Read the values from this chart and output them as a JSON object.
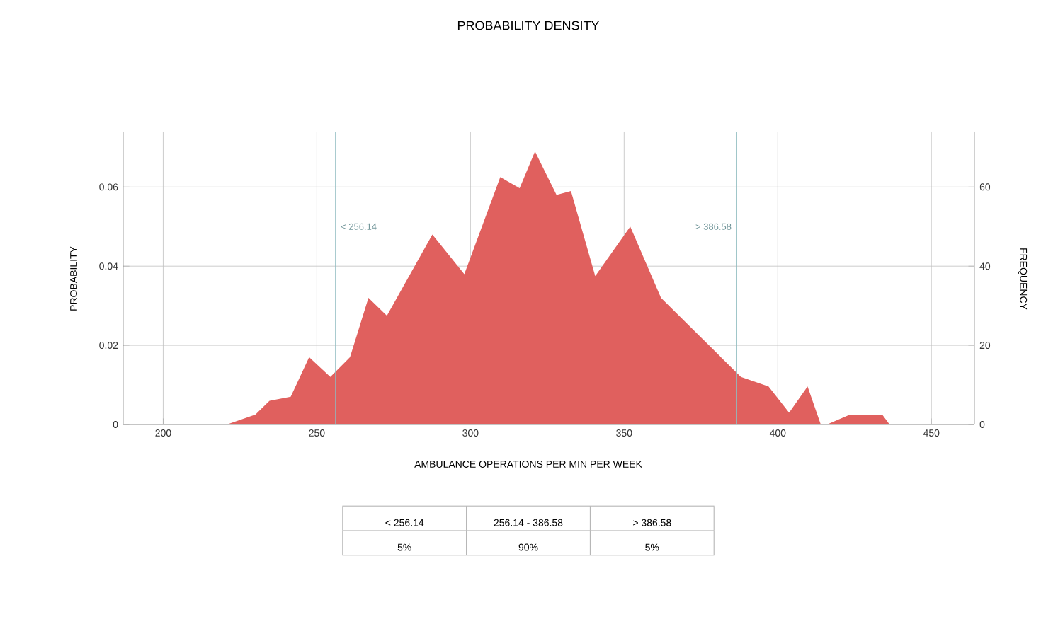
{
  "chart_data": {
    "type": "area",
    "title": "PROBABILITY DENSITY",
    "xlabel": "AMBULANCE OPERATIONS PER MIN PER WEEK",
    "ylabel": "PROBABILITY",
    "y2label": "FREQUENCY",
    "series": [
      {
        "color": "#e0605e",
        "x": [
          220.7,
          230,
          234.6,
          241.5,
          247.5,
          254.4,
          260.8,
          266.8,
          272.8,
          287.6,
          298,
          309.7,
          316,
          321,
          328,
          332.7,
          340.6,
          352,
          362,
          388,
          397,
          403.7,
          409.7,
          414,
          416,
          423.5,
          434,
          436.4
        ],
        "values": [
          0,
          0.0025,
          0.006,
          0.007,
          0.017,
          0.012,
          0.017,
          0.032,
          0.0275,
          0.048,
          0.038,
          0.0625,
          0.0597,
          0.069,
          0.058,
          0.059,
          0.0375,
          0.05,
          0.032,
          0.012,
          0.0096,
          0.003,
          0.0096,
          0,
          0,
          0.0025,
          0.0025,
          0
        ]
      }
    ],
    "xlim": [
      187,
      464
    ],
    "xticks": [
      200,
      250,
      300,
      350,
      400,
      450
    ],
    "ylim": [
      0,
      0.074
    ],
    "yticks": [
      0,
      {
        "value": 0.02,
        "label": "0.02"
      },
      0.04,
      0.06
    ],
    "y2lim": [
      0,
      74
    ],
    "y2ticks": [
      0,
      20,
      40,
      60
    ],
    "grid": true,
    "ref_lines": [
      {
        "axis": "x",
        "value": 256.14,
        "label": "< 256.14",
        "color": "#8fbcc0"
      },
      {
        "axis": "x",
        "value": 386.58,
        "label": "> 386.58",
        "color": "#8fbcc0"
      }
    ],
    "annotations": [
      "< 256.14",
      "256.14 - 386.58",
      "> 386.58",
      "5%",
      "90%",
      "5%"
    ]
  }
}
